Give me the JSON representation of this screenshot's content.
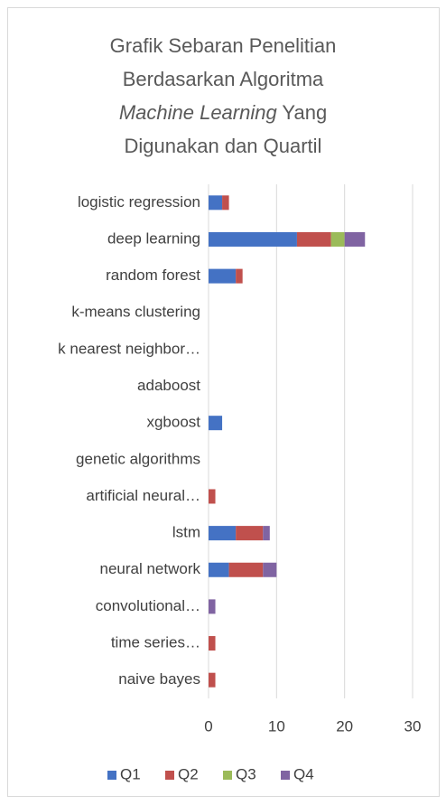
{
  "chart_data": {
    "type": "stacked_barh",
    "title_parts": [
      "Grafik Sebaran Penelitian Berdasarkan Algoritma ",
      "Machine Learning",
      " Yang Digunakan dan Quartil"
    ],
    "categories": [
      "logistic regression",
      "deep learning",
      "random forest",
      "k-means clustering",
      "k nearest neighbor…",
      "adaboost",
      "xgboost",
      "genetic algorithms",
      "artificial neural…",
      "lstm",
      "neural network",
      "convolutional…",
      "time series…",
      "naive bayes"
    ],
    "series": [
      {
        "name": "Q1",
        "color": "#4472c4",
        "values": [
          2,
          13,
          4,
          0,
          0,
          0,
          2,
          0,
          0,
          4,
          3,
          0,
          0,
          0
        ]
      },
      {
        "name": "Q2",
        "color": "#c0504d",
        "values": [
          1,
          5,
          1,
          0,
          0,
          0,
          0,
          0,
          1,
          4,
          5,
          0,
          1,
          1
        ]
      },
      {
        "name": "Q3",
        "color": "#9bbb59",
        "values": [
          0,
          2,
          0,
          0,
          0,
          0,
          0,
          0,
          0,
          0,
          0,
          0,
          0,
          0
        ]
      },
      {
        "name": "Q4",
        "color": "#8064a2",
        "values": [
          0,
          3,
          0,
          0,
          0,
          0,
          0,
          0,
          0,
          1,
          2,
          1,
          0,
          0
        ]
      }
    ],
    "xlim": [
      0,
      30
    ],
    "xticks": [
      0,
      10,
      20,
      30
    ],
    "grid": true,
    "legend": "bottom"
  }
}
